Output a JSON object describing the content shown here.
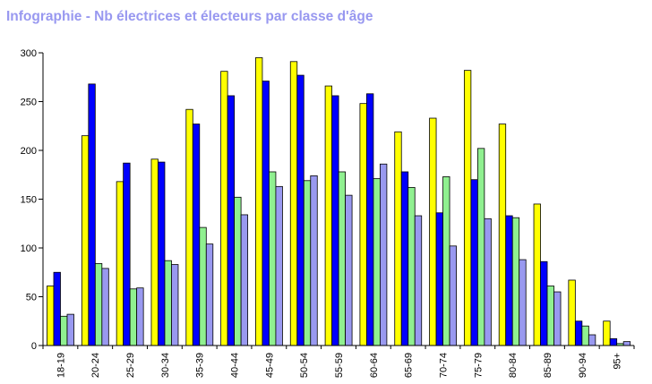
{
  "title": "Infographie - Nb électrices et électeurs par classe d'âge",
  "chart_data": {
    "type": "bar",
    "title": "Infographie - Nb électrices et électeurs par classe d'âge",
    "xlabel": "",
    "ylabel": "",
    "ylim": [
      0,
      300
    ],
    "yticks": [
      "0",
      "50",
      "100",
      "150",
      "200",
      "250",
      "300"
    ],
    "grid": false,
    "categories": [
      "18-19",
      "20-24",
      "25-29",
      "30-34",
      "35-39",
      "40-44",
      "45-49",
      "50-54",
      "55-59",
      "60-64",
      "65-69",
      "70-74",
      "75-79",
      "80-84",
      "85-89",
      "90-94",
      "95+"
    ],
    "series": [
      {
        "color": "#ffff00",
        "values": [
          61,
          215,
          168,
          191,
          242,
          281,
          295,
          291,
          266,
          248,
          219,
          233,
          282,
          227,
          145,
          67,
          25
        ]
      },
      {
        "color": "#0000ff",
        "values": [
          75,
          268,
          187,
          188,
          227,
          256,
          271,
          277,
          256,
          258,
          178,
          136,
          170,
          133,
          86,
          25,
          7
        ]
      },
      {
        "color": "#90f090",
        "values": [
          30,
          84,
          58,
          87,
          121,
          152,
          178,
          169,
          178,
          171,
          162,
          173,
          202,
          131,
          61,
          20,
          2
        ]
      },
      {
        "color": "#9999f0",
        "values": [
          32,
          79,
          59,
          83,
          104,
          134,
          163,
          174,
          154,
          186,
          133,
          102,
          130,
          88,
          55,
          11,
          4
        ]
      }
    ]
  }
}
